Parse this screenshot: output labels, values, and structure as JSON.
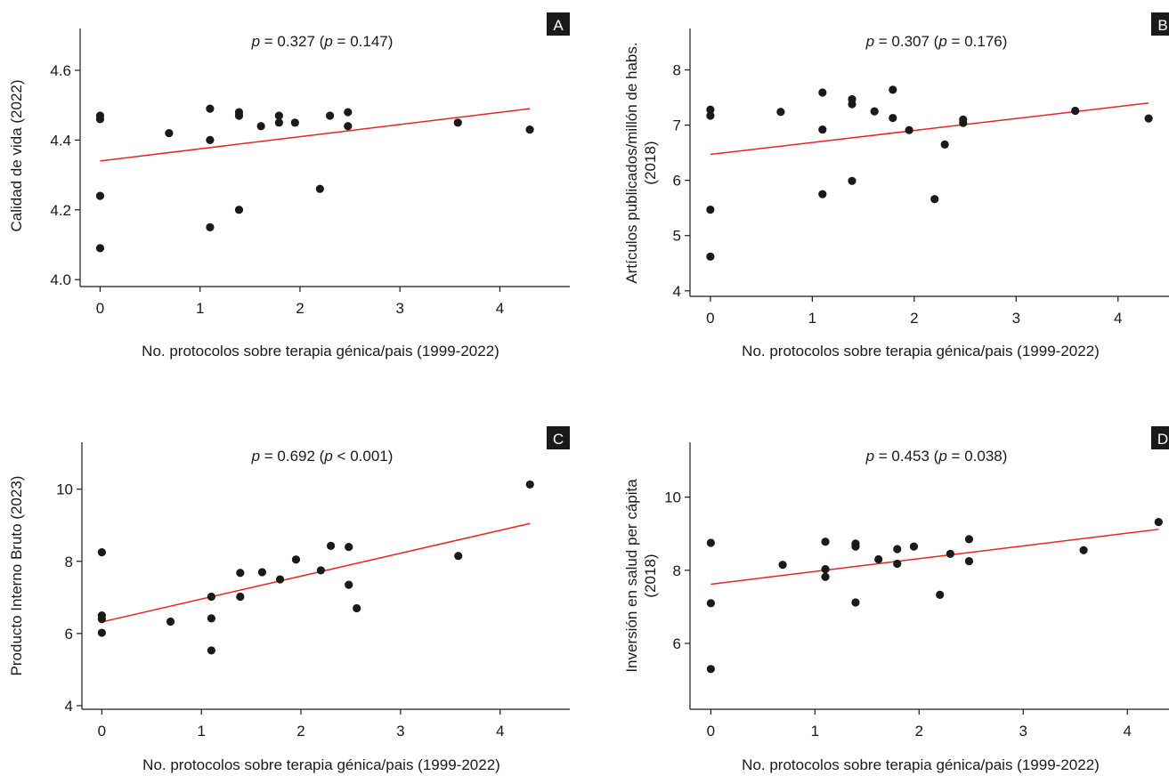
{
  "chart_data": [
    {
      "type": "scatter",
      "panel_label": "A",
      "annotation": {
        "r_sym": "p",
        "r_val": " = 0.327 (",
        "p_sym": "p",
        "p_val": " = 0.147)"
      },
      "xlabel": "No. protocolos sobre terapia génica/pais (1999-2022)",
      "ylabel": [
        "Calidad de vida (2022)"
      ],
      "xlim": [
        -0.2,
        4.7
      ],
      "ylim": [
        3.98,
        4.72
      ],
      "xticks": [
        0,
        1,
        2,
        3,
        4
      ],
      "yticks": [
        4.0,
        4.2,
        4.4,
        4.6
      ],
      "ytick_labels": [
        "4.0",
        "4.2",
        "4.4",
        "4.6"
      ],
      "points": [
        [
          0,
          4.47
        ],
        [
          0,
          4.46
        ],
        [
          0,
          4.24
        ],
        [
          0,
          4.09
        ],
        [
          0.69,
          4.42
        ],
        [
          1.1,
          4.49
        ],
        [
          1.1,
          4.4
        ],
        [
          1.1,
          4.15
        ],
        [
          1.39,
          4.48
        ],
        [
          1.39,
          4.47
        ],
        [
          1.39,
          4.2
        ],
        [
          1.61,
          4.44
        ],
        [
          1.79,
          4.47
        ],
        [
          1.79,
          4.45
        ],
        [
          1.95,
          4.45
        ],
        [
          2.2,
          4.26
        ],
        [
          2.3,
          4.47
        ],
        [
          2.48,
          4.48
        ],
        [
          2.48,
          4.44
        ],
        [
          3.58,
          4.45
        ],
        [
          4.3,
          4.43
        ]
      ],
      "trendline": [
        [
          0,
          4.34
        ],
        [
          4.3,
          4.49
        ]
      ],
      "trend_color": "#e8261d"
    },
    {
      "type": "scatter",
      "panel_label": "B",
      "annotation": {
        "r_sym": "p",
        "r_val": " = 0.307 (",
        "p_sym": "p",
        "p_val": " = 0.176)"
      },
      "xlabel": "No. protocolos sobre terapia génica/pais (1999-2022)",
      "ylabel": [
        "Artículos publicados/millón de habs.",
        "(2018)"
      ],
      "xlim": [
        -0.2,
        4.5
      ],
      "ylim": [
        3.9,
        8.75
      ],
      "xticks": [
        0,
        1,
        2,
        3,
        4
      ],
      "yticks": [
        4,
        5,
        6,
        7,
        8
      ],
      "ytick_labels": [
        "4",
        "5",
        "6",
        "7",
        "8"
      ],
      "points": [
        [
          0,
          7.28
        ],
        [
          0,
          7.17
        ],
        [
          0,
          5.47
        ],
        [
          0,
          4.62
        ],
        [
          0.69,
          7.24
        ],
        [
          1.1,
          7.59
        ],
        [
          1.1,
          6.92
        ],
        [
          1.1,
          5.75
        ],
        [
          1.39,
          7.47
        ],
        [
          1.39,
          7.38
        ],
        [
          1.39,
          5.99
        ],
        [
          1.61,
          7.25
        ],
        [
          1.79,
          7.64
        ],
        [
          1.79,
          7.13
        ],
        [
          1.95,
          6.91
        ],
        [
          2.2,
          5.66
        ],
        [
          2.3,
          6.65
        ],
        [
          2.48,
          7.1
        ],
        [
          2.48,
          7.04
        ],
        [
          3.58,
          7.26
        ],
        [
          4.3,
          7.12
        ]
      ],
      "trendline": [
        [
          0,
          6.47
        ],
        [
          4.3,
          7.4
        ]
      ],
      "trend_color": "#e8261d"
    },
    {
      "type": "scatter",
      "panel_label": "C",
      "annotation": {
        "r_sym": "p",
        "r_val": " = 0.692 (",
        "p_sym": "p",
        "p_val": " < 0.001)"
      },
      "xlabel": "No. protocolos sobre terapia génica/pais (1999-2022)",
      "ylabel": [
        "Producto Interno Bruto (2023)"
      ],
      "xlim": [
        -0.2,
        4.7
      ],
      "ylim": [
        3.9,
        11.3
      ],
      "xticks": [
        0,
        1,
        2,
        3,
        4
      ],
      "yticks": [
        4,
        6,
        8,
        10
      ],
      "ytick_labels": [
        "4",
        "6",
        "8",
        "10"
      ],
      "points": [
        [
          0,
          8.25
        ],
        [
          0,
          6.5
        ],
        [
          0,
          6.4
        ],
        [
          0,
          6.02
        ],
        [
          0.69,
          6.33
        ],
        [
          1.1,
          7.02
        ],
        [
          1.1,
          6.42
        ],
        [
          1.1,
          5.53
        ],
        [
          1.39,
          7.68
        ],
        [
          1.39,
          7.02
        ],
        [
          1.61,
          7.7
        ],
        [
          1.79,
          7.5
        ],
        [
          1.95,
          8.05
        ],
        [
          2.2,
          7.75
        ],
        [
          2.3,
          8.43
        ],
        [
          2.48,
          8.4
        ],
        [
          2.48,
          7.35
        ],
        [
          2.56,
          6.7
        ],
        [
          3.58,
          8.15
        ],
        [
          4.3,
          10.13
        ]
      ],
      "trendline": [
        [
          0,
          6.32
        ],
        [
          4.3,
          9.05
        ]
      ],
      "trend_color": "#e8261d"
    },
    {
      "type": "scatter",
      "panel_label": "D",
      "annotation": {
        "r_sym": "p",
        "r_val": " = 0.453 (",
        "p_sym": "p",
        "p_val": " = 0.038)"
      },
      "xlabel": "No. protocolos sobre terapia génica/pais (1999-2022)",
      "ylabel": [
        "Inversión en salud per cápita",
        "(2018)"
      ],
      "xlim": [
        -0.2,
        4.4
      ],
      "ylim": [
        4.2,
        11.5
      ],
      "xticks": [
        0,
        1,
        2,
        3,
        4
      ],
      "yticks": [
        6,
        8,
        10
      ],
      "ytick_labels": [
        "6",
        "8",
        "10"
      ],
      "points": [
        [
          0,
          8.75
        ],
        [
          0,
          7.1
        ],
        [
          0,
          5.3
        ],
        [
          0.69,
          8.15
        ],
        [
          1.1,
          8.78
        ],
        [
          1.1,
          8.03
        ],
        [
          1.1,
          7.82
        ],
        [
          1.39,
          8.73
        ],
        [
          1.39,
          8.65
        ],
        [
          1.39,
          7.12
        ],
        [
          1.61,
          8.3
        ],
        [
          1.79,
          8.58
        ],
        [
          1.79,
          8.18
        ],
        [
          1.95,
          8.65
        ],
        [
          2.2,
          7.33
        ],
        [
          2.3,
          8.45
        ],
        [
          2.48,
          8.85
        ],
        [
          2.48,
          8.25
        ],
        [
          3.58,
          8.55
        ],
        [
          4.3,
          9.32
        ]
      ],
      "trendline": [
        [
          0,
          7.62
        ],
        [
          4.3,
          9.12
        ]
      ],
      "trend_color": "#e8261d"
    }
  ]
}
